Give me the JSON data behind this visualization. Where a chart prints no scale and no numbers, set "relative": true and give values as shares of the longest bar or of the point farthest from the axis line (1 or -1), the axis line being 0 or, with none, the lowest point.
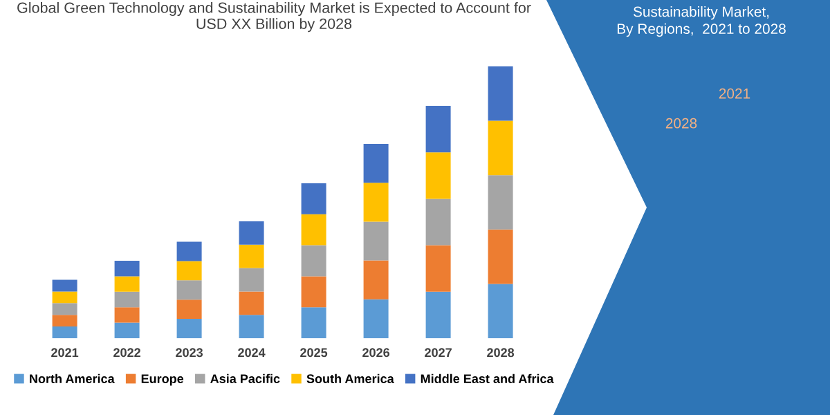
{
  "chart_data": {
    "type": "bar",
    "title": "Global Green Technology and Sustainability Market is Expected to Account for USD XX Billion by 2028",
    "subtitle": "Sustainability Market,\nBy Regions,  2021 to 2028",
    "annotations": [
      "2021",
      "2028"
    ],
    "categories": [
      "2021",
      "2022",
      "2023",
      "2024",
      "2025",
      "2026",
      "2027",
      "2028"
    ],
    "stacked": true,
    "relative": true,
    "legend": "bottom",
    "grid": false,
    "series": [
      {
        "name": "North America",
        "color": "#5b9bd5",
        "values": [
          0.043,
          0.057,
          0.071,
          0.086,
          0.114,
          0.143,
          0.171,
          0.2
        ]
      },
      {
        "name": "Europe",
        "color": "#ed7d31",
        "values": [
          0.043,
          0.057,
          0.071,
          0.086,
          0.114,
          0.143,
          0.171,
          0.2
        ]
      },
      {
        "name": "Asia Pacific",
        "color": "#a5a5a5",
        "values": [
          0.043,
          0.057,
          0.071,
          0.086,
          0.114,
          0.143,
          0.171,
          0.2
        ]
      },
      {
        "name": "South America",
        "color": "#ffc000",
        "values": [
          0.043,
          0.057,
          0.071,
          0.086,
          0.114,
          0.143,
          0.171,
          0.2
        ]
      },
      {
        "name": "Middle East and Africa",
        "color": "#4472c4",
        "values": [
          0.043,
          0.057,
          0.071,
          0.086,
          0.114,
          0.143,
          0.171,
          0.2
        ]
      }
    ]
  }
}
